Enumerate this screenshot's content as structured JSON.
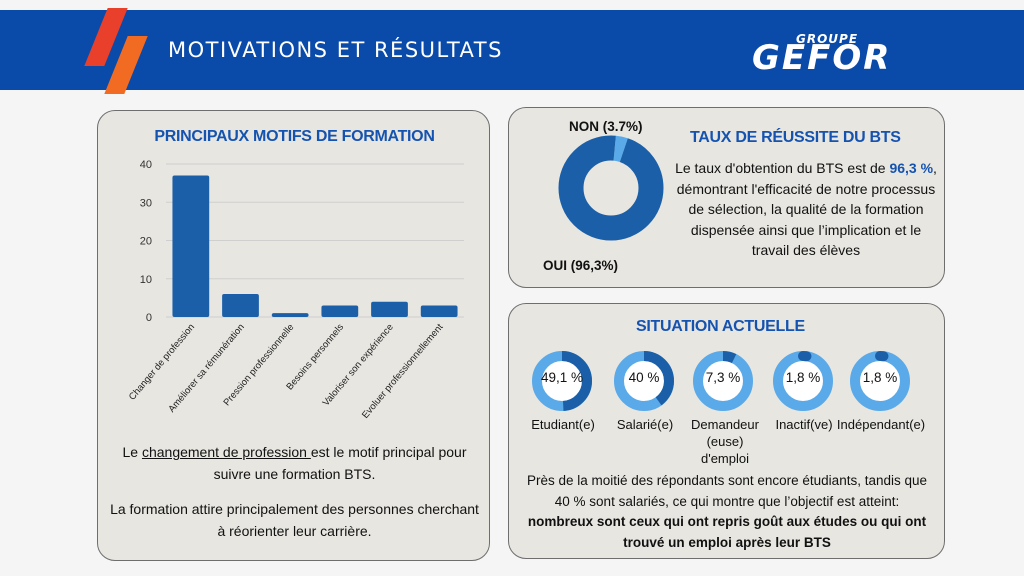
{
  "header": {
    "title": "MOTIVATIONS ET RÉSULTATS",
    "logo_top": "GROUPE",
    "logo_main": "GEFOR",
    "color": "#0a4aa8"
  },
  "motifs": {
    "heading": "PRINCIPAUX MOTIFS DE FORMATION",
    "text1_before": "Le ",
    "text1_link": "changement de profession ",
    "text1_after": "est le motif principal pour suivre une formation BTS.",
    "text2": "La formation attire principalement des personnes cherchant à réorienter leur carrière."
  },
  "chart_data": {
    "type": "bar",
    "categories": [
      "Changer de profession",
      "Améliorer sa rémunération",
      "Pression professionnelle",
      "Besoins personnels",
      "Valoriser son expérience",
      "Evoluer professionnellement"
    ],
    "values": [
      37,
      6,
      1,
      3,
      4,
      3
    ],
    "ylim": [
      0,
      40
    ],
    "yticks": [
      "0",
      "10",
      "20",
      "30",
      "40"
    ],
    "grid": true,
    "bar_color": "#1a5fa8"
  },
  "reussite": {
    "heading": "TAUX DE RÉUSSITE DU BTS",
    "label_non": "NON (3.7%)",
    "label_oui": "OUI (96,3%)",
    "oui_percent": 96.3,
    "non_percent": 3.7,
    "text_before": "Le taux d'obtention du BTS est de ",
    "text_highlight": "96,3 %",
    "text_after": ", démontrant l'efficacité de notre processus de sélection, la qualité de la formation dispensée ainsi que l’implication et le travail des élèves",
    "color_oui": "#1a5fa8",
    "color_non": "#5aa9e8"
  },
  "situation": {
    "heading": "SITUATION ACTUELLE",
    "items": [
      {
        "value": "49,1 %",
        "label": "Etudiant(e)",
        "percent": 49.1
      },
      {
        "value": "40 %",
        "label": "Salarié(e)",
        "percent": 40
      },
      {
        "value": "7,3 %",
        "label": "Demandeur (euse) d'emploi",
        "percent": 7.3
      },
      {
        "value": "1,8 %",
        "label": "Inactif(ve)",
        "percent": 1.8
      },
      {
        "value": "1,8 %",
        "label": "Indépendant(e)",
        "percent": 1.8
      }
    ],
    "text_normal": "Près de la moitié des répondants sont encore étudiants, tandis que 40 % sont salariés, ce qui montre que l’objectif est atteint: ",
    "text_bold": "nombreux sont ceux qui ont repris goût aux études ou qui ont trouvé un emploi après leur BTS",
    "color_ring": "#5aa9e8",
    "color_fill": "#1a5fa8"
  }
}
